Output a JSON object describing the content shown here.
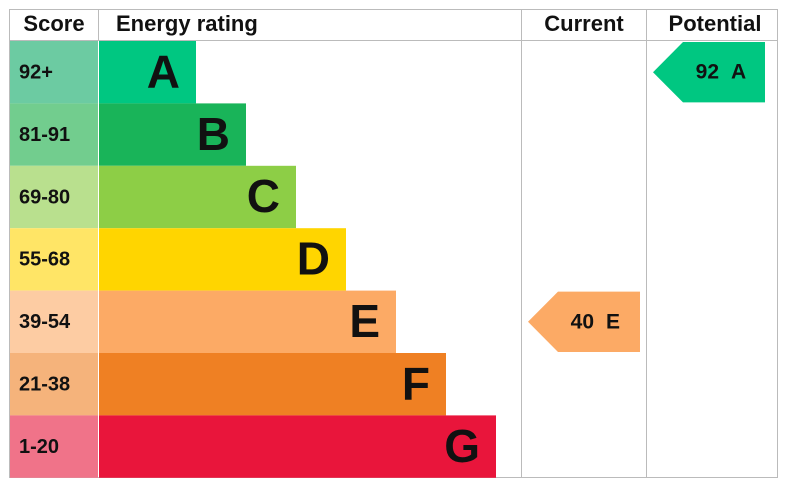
{
  "header": {
    "score": "Score",
    "rating": "Energy rating",
    "current": "Current",
    "potential": "Potential"
  },
  "bands": [
    {
      "score": "92+",
      "letter": "A",
      "color": "#00c781",
      "score_color": "#6ccba2"
    },
    {
      "score": "81-91",
      "letter": "B",
      "color": "#19b459",
      "score_color": "#72cd8e"
    },
    {
      "score": "69-80",
      "letter": "C",
      "color": "#8dce46",
      "score_color": "#b9e08e"
    },
    {
      "score": "55-68",
      "letter": "D",
      "color": "#ffd500",
      "score_color": "#ffe566"
    },
    {
      "score": "39-54",
      "letter": "E",
      "color": "#fcaa65",
      "score_color": "#fdcca3"
    },
    {
      "score": "21-38",
      "letter": "F",
      "color": "#ef8023",
      "score_color": "#f5b37b"
    },
    {
      "score": "1-20",
      "letter": "G",
      "color": "#e9153b",
      "score_color": "#f07389"
    }
  ],
  "current": {
    "value": 40,
    "letter": "E"
  },
  "potential": {
    "value": 92,
    "letter": "A"
  }
}
